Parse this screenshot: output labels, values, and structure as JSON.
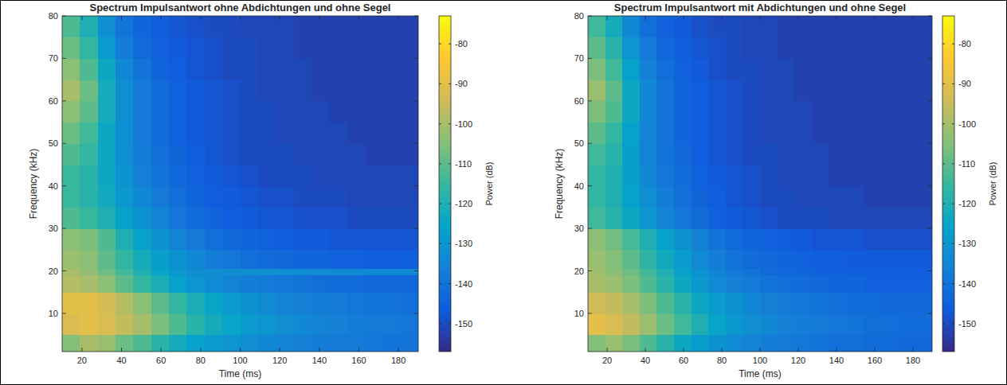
{
  "chart_data": [
    {
      "type": "heatmap",
      "title": "Spectrum Impulsantwort ohne Abdichtungen und ohne Segel",
      "x_label": "Time (ms)",
      "y_label": "Frequency (kHz)",
      "colorbar_label": "Power (dB)",
      "xlim": [
        10,
        190
      ],
      "ylim": [
        1,
        80
      ],
      "xticks": [
        20,
        40,
        60,
        80,
        100,
        120,
        140,
        160,
        180
      ],
      "yticks": [
        10,
        20,
        30,
        40,
        50,
        60,
        70,
        80
      ],
      "clim": [
        -157,
        -73
      ],
      "cticks": [
        -150,
        -140,
        -130,
        -120,
        -110,
        -100,
        -90,
        -80
      ],
      "x_edges": [
        10,
        19,
        28,
        37,
        46,
        55,
        64,
        73,
        82,
        91,
        100,
        109,
        118,
        127,
        136,
        145,
        154,
        163,
        172,
        181,
        190
      ],
      "y_edges": [
        1,
        5,
        10,
        15,
        19,
        20.5,
        25,
        30,
        35,
        40,
        45,
        50,
        55,
        60,
        65,
        70,
        75,
        80
      ],
      "cells": [
        [
          -105,
          -100,
          -102,
          -108,
          -112,
          -118,
          -122,
          -126,
          -128,
          -130,
          -132,
          -134,
          -135,
          -136,
          -137,
          -138,
          -138,
          -139,
          -140,
          -140
        ],
        [
          -92,
          -90,
          -92,
          -96,
          -100,
          -106,
          -112,
          -118,
          -122,
          -125,
          -128,
          -130,
          -132,
          -134,
          -135,
          -136,
          -137,
          -138,
          -138,
          -139
        ],
        [
          -90,
          -90,
          -93,
          -98,
          -104,
          -110,
          -116,
          -121,
          -125,
          -128,
          -131,
          -133,
          -135,
          -136,
          -137,
          -138,
          -139,
          -140,
          -140,
          -141
        ],
        [
          -98,
          -100,
          -104,
          -110,
          -116,
          -121,
          -126,
          -130,
          -133,
          -135,
          -137,
          -138,
          -139,
          -140,
          -141,
          -142,
          -142,
          -143,
          -143,
          -143
        ],
        [
          -100,
          -103,
          -108,
          -114,
          -120,
          -125,
          -129,
          -132,
          -132,
          -132,
          -132,
          -132,
          -132,
          -132,
          -133,
          -133,
          -133,
          -133,
          -133,
          -133
        ],
        [
          -102,
          -104,
          -110,
          -116,
          -122,
          -127,
          -131,
          -134,
          -137,
          -139,
          -141,
          -142,
          -143,
          -144,
          -144,
          -145,
          -145,
          -146,
          -146,
          -146
        ],
        [
          -104,
          -106,
          -112,
          -120,
          -126,
          -131,
          -135,
          -138,
          -141,
          -143,
          -144,
          -145,
          -146,
          -147,
          -147,
          -148,
          -148,
          -148,
          -148,
          -148
        ],
        [
          -112,
          -115,
          -120,
          -126,
          -131,
          -135,
          -139,
          -142,
          -144,
          -146,
          -147,
          -148,
          -148,
          -149,
          -149,
          -149,
          -150,
          -150,
          -150,
          -150
        ],
        [
          -115,
          -118,
          -123,
          -129,
          -134,
          -138,
          -141,
          -144,
          -146,
          -147,
          -148,
          -149,
          -149,
          -150,
          -150,
          -150,
          -151,
          -151,
          -151,
          -151
        ],
        [
          -115,
          -118,
          -124,
          -131,
          -136,
          -140,
          -143,
          -145,
          -147,
          -148,
          -149,
          -150,
          -150,
          -150,
          -151,
          -151,
          -151,
          -151,
          -151,
          -151
        ],
        [
          -112,
          -116,
          -124,
          -132,
          -137,
          -141,
          -144,
          -146,
          -148,
          -149,
          -150,
          -150,
          -150,
          -151,
          -151,
          -151,
          -151,
          -152,
          -152,
          -152
        ],
        [
          -108,
          -114,
          -124,
          -132,
          -138,
          -142,
          -145,
          -147,
          -148,
          -149,
          -150,
          -150,
          -151,
          -151,
          -151,
          -151,
          -152,
          -152,
          -152,
          -152
        ],
        [
          -104,
          -110,
          -122,
          -132,
          -138,
          -142,
          -145,
          -147,
          -148,
          -149,
          -150,
          -150,
          -151,
          -151,
          -151,
          -152,
          -152,
          -152,
          -152,
          -152
        ],
        [
          -100,
          -108,
          -122,
          -132,
          -138,
          -142,
          -145,
          -147,
          -148,
          -149,
          -150,
          -151,
          -151,
          -151,
          -152,
          -152,
          -152,
          -152,
          -152,
          -152
        ],
        [
          -104,
          -112,
          -124,
          -134,
          -140,
          -144,
          -146,
          -148,
          -149,
          -150,
          -150,
          -151,
          -151,
          -151,
          -152,
          -152,
          -152,
          -152,
          -152,
          -152
        ],
        [
          -108,
          -116,
          -128,
          -137,
          -142,
          -145,
          -147,
          -148,
          -149,
          -150,
          -150,
          -151,
          -151,
          -152,
          -152,
          -152,
          -152,
          -152,
          -152,
          -152
        ],
        [
          -112,
          -120,
          -132,
          -140,
          -144,
          -146,
          -148,
          -149,
          -150,
          -150,
          -151,
          -151,
          -151,
          -152,
          -152,
          -152,
          -152,
          -152,
          -152,
          -152
        ]
      ]
    },
    {
      "type": "heatmap",
      "title": "Spectrum Impulsantwort mit Abdichtungen und ohne Segel",
      "x_label": "Time (ms)",
      "y_label": "Frequency (kHz)",
      "colorbar_label": "Power (dB)",
      "xlim": [
        10,
        190
      ],
      "ylim": [
        1,
        80
      ],
      "xticks": [
        20,
        40,
        60,
        80,
        100,
        120,
        140,
        160,
        180
      ],
      "yticks": [
        10,
        20,
        30,
        40,
        50,
        60,
        70,
        80
      ],
      "clim": [
        -157,
        -73
      ],
      "cticks": [
        -150,
        -140,
        -130,
        -120,
        -110,
        -100,
        -90,
        -80
      ],
      "x_edges": [
        10,
        19,
        28,
        37,
        46,
        55,
        64,
        73,
        82,
        91,
        100,
        109,
        118,
        127,
        136,
        145,
        154,
        163,
        172,
        181,
        190
      ],
      "y_edges": [
        1,
        5,
        10,
        15,
        19,
        20.5,
        25,
        30,
        35,
        40,
        45,
        50,
        55,
        60,
        65,
        70,
        75,
        80
      ],
      "cells": [
        [
          -105,
          -102,
          -106,
          -112,
          -118,
          -124,
          -128,
          -131,
          -133,
          -135,
          -137,
          -138,
          -139,
          -140,
          -141,
          -141,
          -142,
          -142,
          -143,
          -143
        ],
        [
          -90,
          -92,
          -96,
          -102,
          -108,
          -114,
          -120,
          -125,
          -129,
          -132,
          -134,
          -136,
          -137,
          -138,
          -139,
          -140,
          -141,
          -141,
          -142,
          -142
        ],
        [
          -94,
          -96,
          -100,
          -106,
          -112,
          -118,
          -124,
          -128,
          -131,
          -134,
          -136,
          -138,
          -139,
          -140,
          -141,
          -142,
          -142,
          -143,
          -143,
          -143
        ],
        [
          -100,
          -102,
          -106,
          -112,
          -118,
          -124,
          -129,
          -133,
          -136,
          -138,
          -140,
          -141,
          -142,
          -143,
          -144,
          -144,
          -145,
          -145,
          -145,
          -145
        ],
        [
          -101,
          -104,
          -108,
          -114,
          -120,
          -126,
          -131,
          -135,
          -138,
          -140,
          -142,
          -143,
          -144,
          -145,
          -145,
          -146,
          -146,
          -146,
          -146,
          -146
        ],
        [
          -102,
          -105,
          -110,
          -117,
          -123,
          -128,
          -133,
          -137,
          -140,
          -142,
          -143,
          -144,
          -145,
          -146,
          -146,
          -147,
          -147,
          -147,
          -147,
          -147
        ],
        [
          -104,
          -107,
          -113,
          -120,
          -126,
          -131,
          -136,
          -140,
          -142,
          -144,
          -145,
          -146,
          -147,
          -148,
          -148,
          -148,
          -149,
          -149,
          -149,
          -149
        ],
        [
          -114,
          -118,
          -124,
          -130,
          -135,
          -139,
          -142,
          -145,
          -147,
          -148,
          -149,
          -150,
          -150,
          -150,
          -151,
          -151,
          -151,
          -151,
          -151,
          -151
        ],
        [
          -116,
          -120,
          -126,
          -132,
          -137,
          -141,
          -144,
          -146,
          -148,
          -149,
          -150,
          -150,
          -151,
          -151,
          -151,
          -151,
          -152,
          -152,
          -152,
          -152
        ],
        [
          -116,
          -120,
          -127,
          -134,
          -139,
          -142,
          -145,
          -147,
          -148,
          -149,
          -150,
          -151,
          -151,
          -151,
          -152,
          -152,
          -152,
          -152,
          -152,
          -152
        ],
        [
          -114,
          -118,
          -127,
          -135,
          -140,
          -143,
          -146,
          -148,
          -149,
          -150,
          -150,
          -151,
          -151,
          -151,
          -152,
          -152,
          -152,
          -152,
          -152,
          -152
        ],
        [
          -110,
          -116,
          -126,
          -135,
          -140,
          -144,
          -146,
          -148,
          -149,
          -150,
          -151,
          -151,
          -151,
          -152,
          -152,
          -152,
          -152,
          -152,
          -152,
          -152
        ],
        [
          -106,
          -112,
          -124,
          -134,
          -140,
          -144,
          -146,
          -148,
          -149,
          -150,
          -151,
          -151,
          -151,
          -152,
          -152,
          -152,
          -152,
          -152,
          -152,
          -152
        ],
        [
          -102,
          -110,
          -124,
          -134,
          -140,
          -144,
          -146,
          -148,
          -149,
          -150,
          -151,
          -151,
          -152,
          -152,
          -152,
          -152,
          -152,
          -152,
          -152,
          -152
        ],
        [
          -106,
          -114,
          -126,
          -136,
          -141,
          -145,
          -147,
          -149,
          -150,
          -150,
          -151,
          -151,
          -152,
          -152,
          -152,
          -152,
          -152,
          -152,
          -152,
          -152
        ],
        [
          -110,
          -118,
          -130,
          -138,
          -143,
          -146,
          -148,
          -149,
          -150,
          -151,
          -151,
          -152,
          -152,
          -152,
          -152,
          -152,
          -152,
          -152,
          -152,
          -152
        ],
        [
          -114,
          -122,
          -134,
          -141,
          -145,
          -147,
          -149,
          -150,
          -150,
          -151,
          -151,
          -152,
          -152,
          -152,
          -152,
          -152,
          -152,
          -152,
          -152,
          -152
        ]
      ]
    }
  ]
}
